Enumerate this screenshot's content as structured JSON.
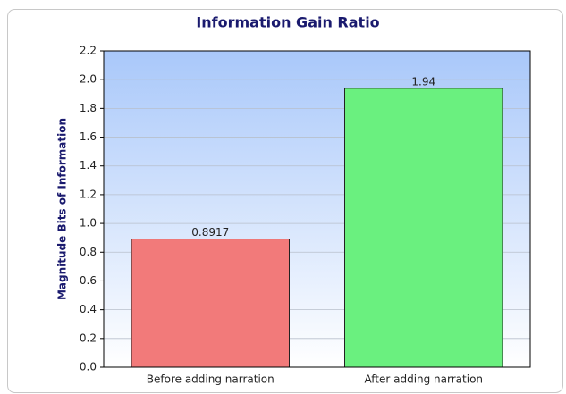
{
  "chart_data": {
    "type": "bar",
    "title": "Information Gain Ratio",
    "y_label": "Magnitude Bits of Information",
    "categories": [
      "Before adding narration",
      "After adding narration"
    ],
    "values": [
      0.8917,
      1.94
    ],
    "colors": [
      "#f27a7a",
      "#6af07f"
    ],
    "ylim": [
      0,
      2.2
    ],
    "yticks": [
      {
        "value": 0,
        "label": "0.0"
      },
      0.2,
      0.4,
      0.6,
      0.8,
      {
        "value": 1,
        "label": "1.0"
      },
      1.2,
      1.4,
      1.6,
      1.8,
      {
        "value": 2,
        "label": "2.0"
      },
      2.2
    ],
    "grid": true
  }
}
